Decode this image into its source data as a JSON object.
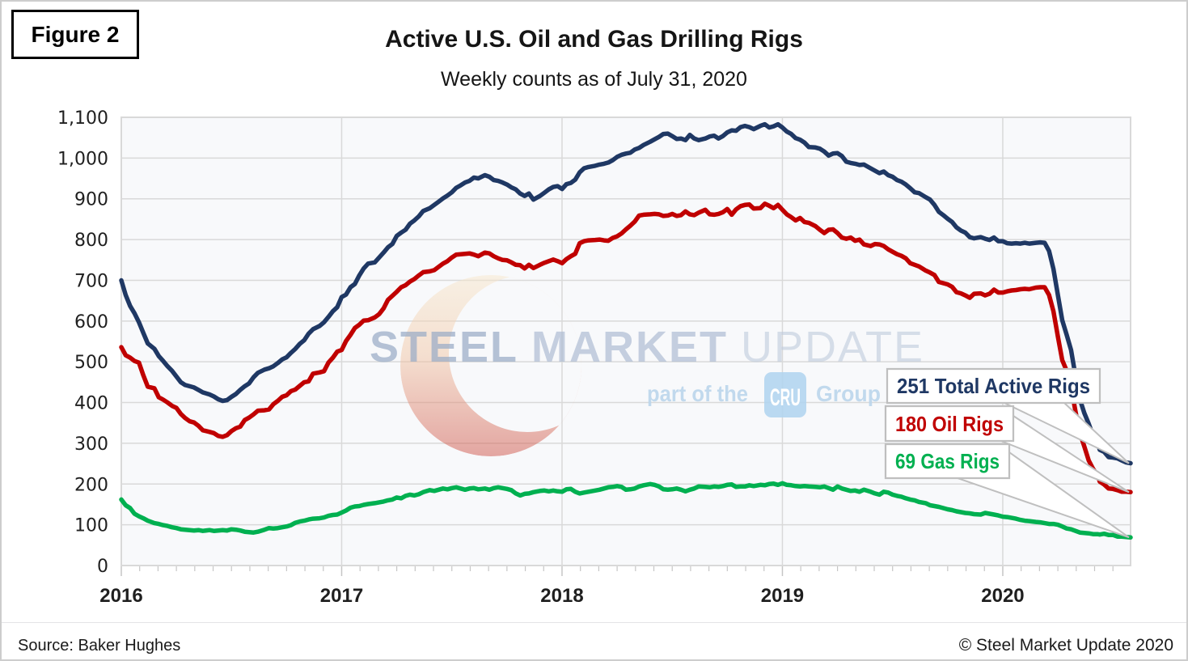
{
  "figure_label": "Figure 2",
  "header": {
    "title": "Active U.S. Oil and Gas Drilling Rigs",
    "subtitle": "Weekly counts as of July 31, 2020"
  },
  "footer": {
    "source": "Source: Baker Hughes",
    "copyright": "© Steel Market Update 2020"
  },
  "watermark": {
    "steel": "STEEL",
    "market": "MARKET",
    "update": "UPDATE",
    "tagline_prefix": "part of the",
    "cru": "CRU",
    "tagline_suffix": "Group"
  },
  "chart_data": {
    "type": "line",
    "title": "Active U.S. Oil and Gas Drilling Rigs",
    "subtitle": "Weekly counts as of July 31, 2020",
    "xlabel": "",
    "ylabel": "",
    "xlim": [
      2016,
      2020.58
    ],
    "ylim": [
      0,
      1100
    ],
    "ytick_step": 100,
    "yticklabels": [
      "0",
      "100",
      "200",
      "300",
      "400",
      "500",
      "600",
      "700",
      "800",
      "900",
      "1,000",
      "1,100"
    ],
    "x_ticks": [
      2016,
      2017,
      2018,
      2019,
      2020
    ],
    "x_tick_labels": [
      "2016",
      "2017",
      "2018",
      "2019",
      "2020"
    ],
    "grid": true,
    "legend_position": "callout-right",
    "plot_bg": "#F8F9FB",
    "grid_color": "#D9D9D9",
    "annotation_border": "#BFBFBF",
    "x": [
      2016,
      2016.02,
      2016.04,
      2016.06,
      2016.08,
      2016.1,
      2016.12,
      2016.15,
      2016.17,
      2016.19,
      2016.21,
      2016.23,
      2016.25,
      2016.27,
      2016.29,
      2016.31,
      2016.33,
      2016.35,
      2016.37,
      2016.4,
      2016.42,
      2016.44,
      2016.46,
      2016.48,
      2016.5,
      2016.52,
      2016.54,
      2016.56,
      2016.58,
      2016.6,
      2016.62,
      2016.65,
      2016.67,
      2016.69,
      2016.71,
      2016.73,
      2016.75,
      2016.77,
      2016.79,
      2016.81,
      2016.83,
      2016.85,
      2016.87,
      2016.9,
      2016.92,
      2016.94,
      2016.96,
      2016.98,
      2017,
      2017.02,
      2017.04,
      2017.06,
      2017.08,
      2017.1,
      2017.12,
      2017.15,
      2017.17,
      2017.19,
      2017.21,
      2017.23,
      2017.25,
      2017.27,
      2017.29,
      2017.31,
      2017.33,
      2017.35,
      2017.37,
      2017.4,
      2017.42,
      2017.44,
      2017.46,
      2017.48,
      2017.5,
      2017.52,
      2017.54,
      2017.56,
      2017.58,
      2017.6,
      2017.62,
      2017.65,
      2017.67,
      2017.69,
      2017.71,
      2017.73,
      2017.75,
      2017.77,
      2017.79,
      2017.81,
      2017.83,
      2017.85,
      2017.87,
      2017.9,
      2017.92,
      2017.94,
      2017.96,
      2017.98,
      2018,
      2018.02,
      2018.04,
      2018.06,
      2018.08,
      2018.1,
      2018.12,
      2018.15,
      2018.17,
      2018.19,
      2018.21,
      2018.23,
      2018.25,
      2018.27,
      2018.29,
      2018.31,
      2018.33,
      2018.35,
      2018.37,
      2018.4,
      2018.42,
      2018.44,
      2018.46,
      2018.48,
      2018.5,
      2018.52,
      2018.54,
      2018.56,
      2018.58,
      2018.6,
      2018.62,
      2018.65,
      2018.67,
      2018.69,
      2018.71,
      2018.73,
      2018.75,
      2018.77,
      2018.79,
      2018.81,
      2018.83,
      2018.85,
      2018.87,
      2018.9,
      2018.92,
      2018.94,
      2018.96,
      2018.98,
      2019,
      2019.02,
      2019.04,
      2019.06,
      2019.08,
      2019.1,
      2019.12,
      2019.15,
      2019.17,
      2019.19,
      2019.21,
      2019.23,
      2019.25,
      2019.27,
      2019.29,
      2019.31,
      2019.33,
      2019.35,
      2019.37,
      2019.4,
      2019.42,
      2019.44,
      2019.46,
      2019.48,
      2019.5,
      2019.52,
      2019.54,
      2019.56,
      2019.58,
      2019.6,
      2019.62,
      2019.65,
      2019.67,
      2019.69,
      2019.71,
      2019.73,
      2019.75,
      2019.77,
      2019.79,
      2019.81,
      2019.83,
      2019.85,
      2019.87,
      2019.9,
      2019.92,
      2019.94,
      2019.96,
      2019.98,
      2020,
      2020.02,
      2020.04,
      2020.06,
      2020.08,
      2020.1,
      2020.12,
      2020.15,
      2020.17,
      2020.19,
      2020.21,
      2020.23,
      2020.25,
      2020.27,
      2020.29,
      2020.31,
      2020.33,
      2020.35,
      2020.37,
      2020.39,
      2020.41,
      2020.43,
      2020.44,
      2020.46,
      2020.48,
      2020.5,
      2020.52,
      2020.54,
      2020.56,
      2020.58
    ],
    "series": [
      {
        "name": "Total Active Rigs",
        "label": "251 Total Active Rigs",
        "final_value": 251,
        "color": "#1F3864",
        "values": [
          700,
          664,
          637,
          619,
          597,
          571,
          545,
          532,
          514,
          502,
          489,
          478,
          464,
          450,
          443,
          440,
          437,
          431,
          425,
          420,
          415,
          408,
          404,
          406,
          414,
          421,
          431,
          440,
          447,
          462,
          473,
          481,
          484,
          489,
          497,
          506,
          511,
          522,
          532,
          544,
          553,
          569,
          580,
          588,
          597,
          610,
          624,
          634,
          659,
          665,
          683,
          691,
          712,
          729,
          741,
          744,
          756,
          768,
          781,
          789,
          809,
          817,
          824,
          839,
          847,
          857,
          870,
          877,
          885,
          893,
          901,
          908,
          916,
          927,
          933,
          940,
          944,
          952,
          950,
          958,
          954,
          946,
          944,
          940,
          935,
          928,
          923,
          913,
          907,
          913,
          898,
          907,
          915,
          923,
          929,
          931,
          924,
          936,
          939,
          947,
          965,
          975,
          978,
          981,
          984,
          986,
          989,
          995,
          1003,
          1008,
          1011,
          1013,
          1021,
          1025,
          1032,
          1040,
          1046,
          1052,
          1059,
          1060,
          1054,
          1047,
          1048,
          1044,
          1057,
          1048,
          1044,
          1048,
          1053,
          1055,
          1048,
          1054,
          1063,
          1068,
          1067,
          1076,
          1079,
          1076,
          1071,
          1079,
          1083,
          1075,
          1078,
          1083,
          1075,
          1065,
          1059,
          1049,
          1045,
          1038,
          1027,
          1026,
          1023,
          1016,
          1006,
          1011,
          1012,
          1005,
          991,
          988,
          986,
          983,
          984,
          975,
          969,
          963,
          967,
          958,
          954,
          946,
          942,
          935,
          926,
          916,
          914,
          904,
          898,
          885,
          868,
          860,
          851,
          843,
          830,
          822,
          817,
          806,
          803,
          806,
          802,
          799,
          805,
          796,
          796,
          791,
          790,
          791,
          790,
          792,
          790,
          792,
          793,
          792,
          772,
          728,
          664,
          602,
          566,
          529,
          465,
          408,
          374,
          348,
          318,
          301,
          284,
          279,
          266,
          265,
          263,
          258,
          253,
          251
        ]
      },
      {
        "name": "Oil Rigs",
        "label": "180 Oil Rigs",
        "final_value": 180,
        "color": "#C00000",
        "values": [
          536,
          516,
          510,
          502,
          498,
          467,
          439,
          435,
          413,
          407,
          400,
          392,
          387,
          372,
          362,
          354,
          351,
          343,
          332,
          328,
          325,
          318,
          316,
          320,
          330,
          337,
          341,
          357,
          363,
          371,
          380,
          381,
          383,
          396,
          404,
          414,
          418,
          428,
          432,
          441,
          450,
          452,
          471,
          474,
          477,
          498,
          510,
          525,
          529,
          551,
          566,
          583,
          591,
          601,
          602,
          609,
          617,
          631,
          652,
          662,
          672,
          683,
          688,
          697,
          703,
          712,
          720,
          722,
          725,
          733,
          741,
          747,
          756,
          763,
          764,
          765,
          766,
          763,
          759,
          768,
          766,
          759,
          754,
          750,
          749,
          744,
          738,
          737,
          729,
          738,
          730,
          738,
          743,
          747,
          751,
          747,
          742,
          752,
          759,
          765,
          791,
          796,
          798,
          799,
          800,
          798,
          797,
          804,
          808,
          815,
          825,
          834,
          844,
          859,
          861,
          862,
          863,
          862,
          858,
          859,
          863,
          858,
          860,
          869,
          862,
          860,
          866,
          873,
          862,
          861,
          863,
          867,
          875,
          861,
          874,
          882,
          885,
          886,
          876,
          877,
          888,
          883,
          877,
          885,
          873,
          862,
          855,
          847,
          853,
          843,
          841,
          833,
          824,
          816,
          824,
          825,
          816,
          805,
          802,
          805,
          797,
          800,
          788,
          784,
          789,
          788,
          784,
          776,
          770,
          764,
          760,
          754,
          742,
          738,
          734,
          724,
          719,
          713,
          696,
          693,
          690,
          684,
          671,
          668,
          663,
          657,
          667,
          668,
          663,
          667,
          677,
          670,
          670,
          673,
          675,
          676,
          678,
          679,
          678,
          682,
          683,
          683,
          664,
          624,
          562,
          504,
          478,
          438,
          378,
          325,
          292,
          258,
          237,
          222,
          206,
          199,
          189,
          188,
          185,
          181,
          181,
          180
        ]
      },
      {
        "name": "Gas Rigs",
        "label": "69 Gas Rigs",
        "final_value": 69,
        "color": "#00B050",
        "values": [
          162,
          148,
          141,
          127,
          121,
          116,
          110,
          104,
          102,
          99,
          97,
          94,
          92,
          89,
          88,
          87,
          86,
          87,
          85,
          87,
          85,
          86,
          87,
          86,
          89,
          88,
          86,
          83,
          82,
          81,
          83,
          88,
          92,
          91,
          92,
          94,
          96,
          99,
          105,
          108,
          110,
          113,
          115,
          116,
          118,
          122,
          124,
          125,
          130,
          135,
          142,
          145,
          146,
          149,
          151,
          153,
          155,
          157,
          160,
          162,
          167,
          165,
          171,
          174,
          172,
          175,
          180,
          185,
          183,
          186,
          189,
          187,
          190,
          192,
          189,
          186,
          189,
          190,
          187,
          189,
          186,
          190,
          192,
          190,
          188,
          185,
          177,
          172,
          176,
          177,
          180,
          183,
          184,
          182,
          184,
          182,
          181,
          187,
          188,
          181,
          177,
          179,
          181,
          184,
          186,
          189,
          192,
          193,
          195,
          193,
          186,
          187,
          189,
          194,
          197,
          200,
          198,
          194,
          187,
          186,
          187,
          189,
          186,
          182,
          186,
          189,
          194,
          193,
          192,
          194,
          193,
          195,
          198,
          199,
          193,
          194,
          194,
          197,
          195,
          198,
          197,
          200,
          201,
          198,
          202,
          198,
          197,
          195,
          194,
          195,
          194,
          193,
          192,
          194,
          190,
          186,
          194,
          189,
          186,
          183,
          184,
          181,
          186,
          181,
          177,
          174,
          181,
          179,
          174,
          171,
          169,
          165,
          162,
          160,
          156,
          153,
          148,
          146,
          144,
          141,
          138,
          136,
          133,
          131,
          129,
          128,
          126,
          125,
          129,
          127,
          125,
          123,
          120,
          119,
          117,
          115,
          112,
          110,
          109,
          107,
          106,
          104,
          102,
          102,
          100,
          96,
          91,
          89,
          85,
          81,
          80,
          79,
          77,
          77,
          76,
          78,
          75,
          75,
          71,
          71,
          70,
          69
        ]
      }
    ]
  }
}
